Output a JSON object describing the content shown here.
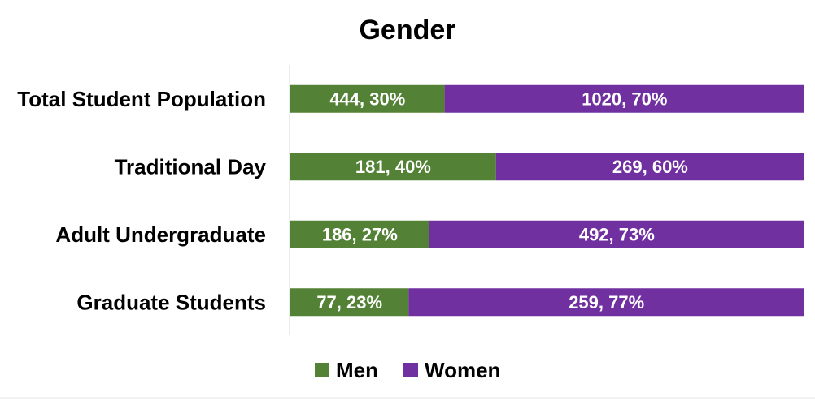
{
  "chart_data": {
    "type": "bar",
    "orientation": "horizontal",
    "stacked": "percent",
    "title": "Gender",
    "categories": [
      "Total Student Population",
      "Traditional Day",
      "Adult Undergraduate",
      "Graduate Students"
    ],
    "series": [
      {
        "name": "Men",
        "color": "#538135",
        "values": [
          444,
          181,
          186,
          77
        ],
        "percents": [
          30,
          40,
          27,
          23
        ],
        "labels": [
          "444, 30%",
          "181, 40%",
          "186, 27%",
          "77, 23%"
        ]
      },
      {
        "name": "Women",
        "color": "#7030a0",
        "values": [
          1020,
          269,
          492,
          259
        ],
        "percents": [
          70,
          60,
          73,
          77
        ],
        "labels": [
          "1020, 70%",
          "269, 60%",
          "492, 73%",
          "259, 77%"
        ]
      }
    ],
    "xlim": [
      0,
      100
    ],
    "grid": false,
    "legend": "bottom"
  }
}
